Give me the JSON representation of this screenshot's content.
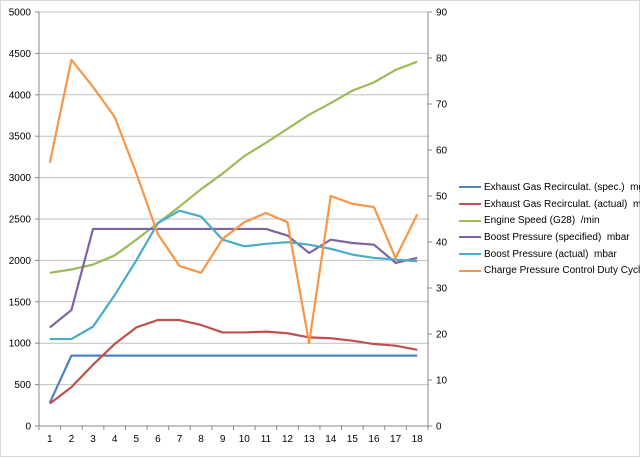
{
  "chart_data": {
    "type": "line",
    "categories": [
      "1",
      "2",
      "3",
      "4",
      "5",
      "6",
      "7",
      "8",
      "9",
      "10",
      "11",
      "12",
      "13",
      "14",
      "15",
      "16",
      "17",
      "18"
    ],
    "y_left": {
      "range": [
        0,
        5000
      ],
      "ticks": [
        "0",
        "500",
        "1000",
        "1500",
        "2000",
        "2500",
        "3000",
        "3500",
        "4000",
        "4500",
        "5000"
      ]
    },
    "y_right": {
      "range": [
        0,
        90
      ],
      "ticks": [
        "0",
        "10",
        "20",
        "30",
        "40",
        "50",
        "60",
        "70",
        "80",
        "90"
      ]
    },
    "grid": true,
    "legend": "right",
    "series": [
      {
        "name": "Exhaust Gas Recirculat. (spec.)  mg/str",
        "color": "#4f81bd",
        "axis": "left",
        "values": [
          280,
          850,
          850,
          850,
          850,
          850,
          850,
          850,
          850,
          850,
          850,
          850,
          850,
          850,
          850,
          850,
          850,
          850
        ]
      },
      {
        "name": "Exhaust Gas Recirculat. (actual)  mg/str",
        "color": "#c0504d",
        "axis": "left",
        "values": [
          270,
          470,
          740,
          990,
          1190,
          1280,
          1280,
          1220,
          1130,
          1130,
          1140,
          1120,
          1070,
          1060,
          1030,
          990,
          970,
          920
        ]
      },
      {
        "name": "Engine Speed (G28)  /min",
        "color": "#9bbb59",
        "axis": "left",
        "values": [
          1850,
          1890,
          1950,
          2060,
          2250,
          2450,
          2650,
          2860,
          3050,
          3260,
          3420,
          3590,
          3760,
          3900,
          4050,
          4150,
          4300,
          4400
        ]
      },
      {
        "name": "Boost Pressure (specified)  mbar",
        "color": "#8064a2",
        "axis": "left",
        "values": [
          1190,
          1400,
          2380,
          2380,
          2380,
          2380,
          2380,
          2380,
          2380,
          2380,
          2380,
          2300,
          2090,
          2250,
          2210,
          2190,
          1970,
          2030
        ]
      },
      {
        "name": "Boost Pressure (actual)  mbar",
        "color": "#4bacc6",
        "axis": "left",
        "values": [
          1050,
          1050,
          1200,
          1580,
          2000,
          2450,
          2600,
          2530,
          2250,
          2170,
          2200,
          2220,
          2190,
          2140,
          2070,
          2030,
          2010,
          1990
        ]
      },
      {
        "name": "Charge Pressure Control Duty Cycle  %",
        "color": "#f79646",
        "axis": "right",
        "values": [
          57.2,
          79.6,
          73.7,
          67.2,
          55,
          41.7,
          34.8,
          33.3,
          40.7,
          44.3,
          46.3,
          44.3,
          18,
          50,
          48.3,
          47.6,
          36.5,
          46
        ]
      }
    ]
  }
}
